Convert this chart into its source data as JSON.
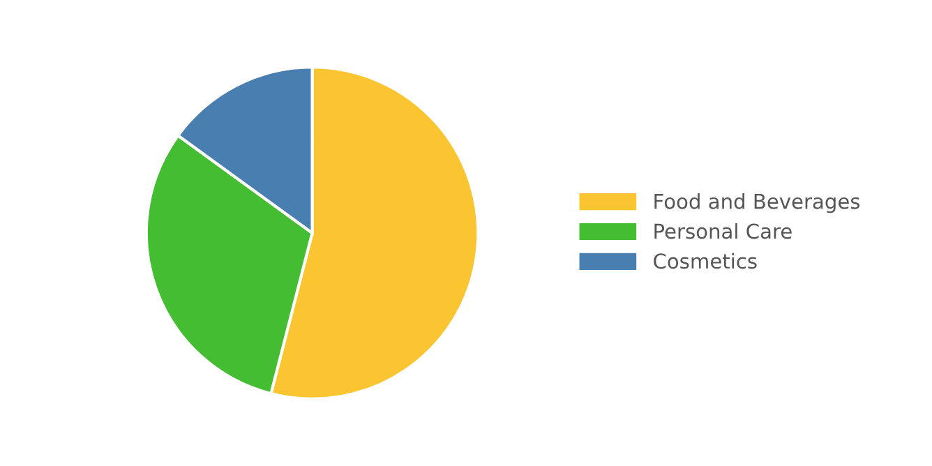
{
  "chart_data": {
    "type": "pie",
    "categories": [
      "Food and Beverages",
      "Personal Care",
      "Cosmetics"
    ],
    "values": [
      54,
      31,
      15
    ],
    "colors": [
      "#fbc531",
      "#44bd32",
      "#487eb0"
    ],
    "legend": "right"
  }
}
